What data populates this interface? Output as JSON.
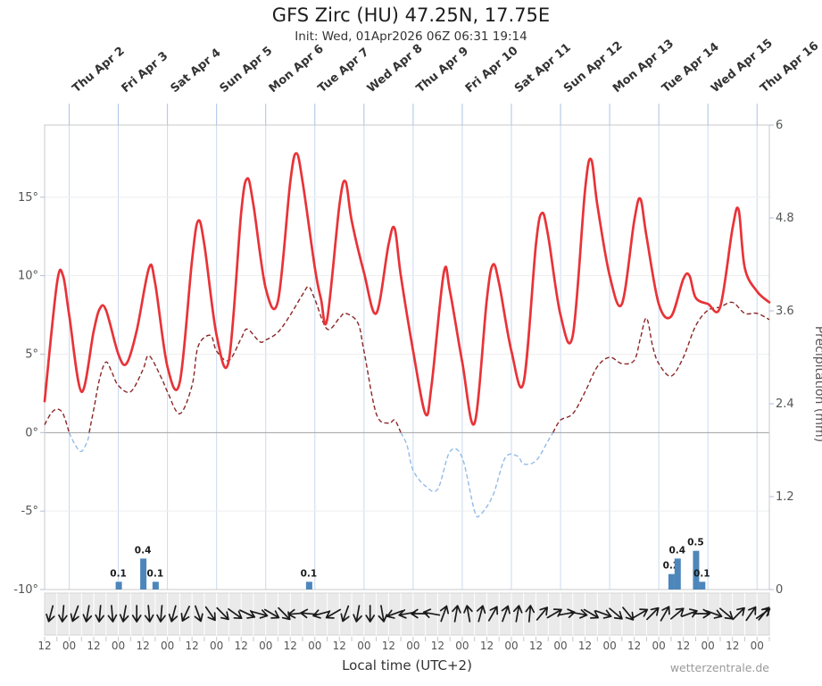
{
  "chart_data": {
    "type": "line",
    "title": "GFS Zirc (HU) 47.25N, 17.75E",
    "subtitle": "Init: Wed, 01Apr2026 06Z 06:31 19:14",
    "xlabel": "Local time (UTC+2)",
    "ylabel_right": "Precipitation (mm)",
    "watermark": "wetterzentrale.de",
    "x_unit": "hours since 2026-04-01 12:00 local",
    "xlim_hours": [
      0,
      354
    ],
    "hours_span": 354,
    "day_labels": [
      "Thu Apr 2",
      "Fri Apr 3",
      "Sat Apr 4",
      "Sun Apr 5",
      "Mon Apr 6",
      "Tue Apr 7",
      "Wed Apr 8",
      "Thu Apr 9",
      "Fri Apr 10",
      "Sat Apr 11",
      "Sun Apr 12",
      "Mon Apr 13",
      "Tue Apr 14",
      "Wed Apr 15",
      "Thu Apr 16"
    ],
    "temp_axis": {
      "ticks": [
        "-10°",
        "-5°",
        "0°",
        "5°",
        "10°",
        "15°"
      ],
      "values": [
        -10,
        -5,
        0,
        5,
        10,
        15
      ],
      "ylim": [
        -10,
        19.6
      ]
    },
    "precip_axis": {
      "ticks": [
        "0",
        "1.2",
        "2.4",
        "3.6",
        "4.8",
        "6"
      ],
      "values": [
        0,
        1.2,
        2.4,
        3.6,
        4.8,
        6
      ],
      "ylim": [
        0,
        6
      ]
    },
    "series": [
      {
        "name": "temperature-2m",
        "color": "#e83338",
        "style": "solid",
        "x_hours": [
          0,
          6,
          9,
          12,
          18,
          24,
          27,
          30,
          36,
          40,
          45,
          51,
          54,
          60,
          66,
          72,
          75,
          78,
          84,
          90,
          96,
          99,
          102,
          108,
          114,
          120,
          123,
          126,
          132,
          135,
          138,
          144,
          147,
          150,
          156,
          162,
          168,
          171,
          174,
          180,
          186,
          189,
          195,
          198,
          204,
          210,
          216,
          219,
          222,
          228,
          234,
          240,
          243,
          246,
          252,
          258,
          264,
          267,
          270,
          276,
          282,
          288,
          291,
          294,
          300,
          306,
          312,
          315,
          318,
          324,
          330,
          336,
          339,
          342,
          348,
          354
        ],
        "values": [
          2,
          9.5,
          10,
          7.5,
          2.6,
          6.5,
          7.9,
          7.8,
          5,
          4.4,
          6.5,
          10.5,
          9.5,
          4.2,
          3.2,
          11,
          13.5,
          12,
          6.2,
          4.6,
          14,
          16.2,
          14.5,
          9.2,
          8.4,
          16,
          17.8,
          16,
          10.5,
          8.5,
          7.2,
          14.5,
          16,
          13.5,
          10.2,
          7.6,
          12,
          13,
          10,
          5.2,
          1.2,
          3,
          10.2,
          9,
          4.5,
          0.6,
          8.5,
          10.7,
          9.5,
          5.2,
          3.2,
          12,
          14,
          12.5,
          7.5,
          6.2,
          15.5,
          17.4,
          14.5,
          10,
          8.2,
          13.5,
          14.9,
          12.5,
          8.2,
          7.4,
          9.8,
          10,
          8.6,
          8.2,
          8,
          13,
          14.2,
          10.5,
          9,
          8.3
        ]
      },
      {
        "name": "dew-point-2m",
        "color_above_zero": "#8b2626",
        "color_below_zero": "#92bbe8",
        "style": "dashed",
        "x_hours": [
          0,
          3,
          6,
          9,
          12,
          15,
          18,
          21,
          24,
          27,
          30,
          33,
          36,
          42,
          48,
          51,
          57,
          60,
          66,
          72,
          75,
          81,
          84,
          90,
          96,
          99,
          105,
          108,
          114,
          120,
          126,
          129,
          132,
          138,
          144,
          147,
          153,
          156,
          162,
          168,
          171,
          177,
          180,
          186,
          192,
          198,
          204,
          210,
          213,
          219,
          225,
          231,
          234,
          240,
          246,
          252,
          258,
          264,
          270,
          276,
          282,
          288,
          291,
          294,
          297,
          300,
          306,
          312,
          318,
          324,
          330,
          336,
          342,
          348,
          354
        ],
        "values": [
          0.5,
          1.2,
          1.5,
          1.2,
          0,
          -0.8,
          -1.2,
          -0.5,
          1.5,
          3.5,
          4.5,
          3.8,
          3,
          2.6,
          4,
          4.9,
          3.5,
          2.6,
          1.2,
          3,
          5.5,
          6.2,
          5.2,
          4.6,
          6,
          6.6,
          5.8,
          5.9,
          6.4,
          7.5,
          8.8,
          9.3,
          8.5,
          6.6,
          7.3,
          7.6,
          7,
          5.2,
          1.2,
          0.6,
          0.8,
          -0.8,
          -2.4,
          -3.4,
          -3.6,
          -1.2,
          -1.6,
          -5,
          -5.2,
          -4,
          -1.6,
          -1.5,
          -2,
          -1.8,
          -0.5,
          0.8,
          1.2,
          2.6,
          4.2,
          4.8,
          4.4,
          4.6,
          6,
          7.3,
          5.5,
          4.4,
          3.6,
          4.8,
          6.8,
          7.8,
          8,
          8.3,
          7.6,
          7.6,
          7.2
        ]
      }
    ],
    "precipitation": {
      "color": "#4d86ba",
      "bar_width_hours": 3,
      "x_hours": [
        36,
        48,
        54,
        129,
        306,
        309,
        318,
        321
      ],
      "values": [
        0.1,
        0.4,
        0.1,
        0.1,
        0.2,
        0.4,
        0.5,
        0.1
      ],
      "labels": [
        "0.1",
        "0.4",
        "0.1",
        "0.1",
        "0.2",
        "0.4",
        "0.5",
        "0.1"
      ]
    },
    "wind_arrows": {
      "x_hours_step": 6,
      "rotations_deg": [
        195,
        185,
        200,
        190,
        185,
        175,
        190,
        180,
        175,
        185,
        195,
        205,
        160,
        145,
        135,
        125,
        115,
        105,
        120,
        135,
        265,
        275,
        255,
        240,
        200,
        190,
        180,
        170,
        250,
        260,
        270,
        280,
        20,
        10,
        350,
        15,
        30,
        20,
        10,
        5,
        40,
        60,
        80,
        100,
        120,
        110,
        130,
        140,
        60,
        45,
        30,
        50,
        70,
        90,
        110,
        130,
        45,
        35,
        55,
        40
      ]
    },
    "bottom_time_labels": {
      "step_hours": 12,
      "labels": [
        "12",
        "00",
        "12",
        "00",
        "12",
        "00",
        "12",
        "00",
        "12",
        "00",
        "12",
        "00",
        "12",
        "00",
        "12",
        "00",
        "12",
        "00",
        "12",
        "00",
        "12",
        "00",
        "12",
        "00",
        "12",
        "00",
        "12",
        "00",
        "12",
        "00"
      ]
    },
    "grid": {
      "day_line_color": "#c9daf0",
      "zero_line_color": "#a0a0a0",
      "minor_h_color": "#ededed",
      "border_color": "#c8c8c8",
      "wind_band_bg": "#eaeaea"
    }
  }
}
